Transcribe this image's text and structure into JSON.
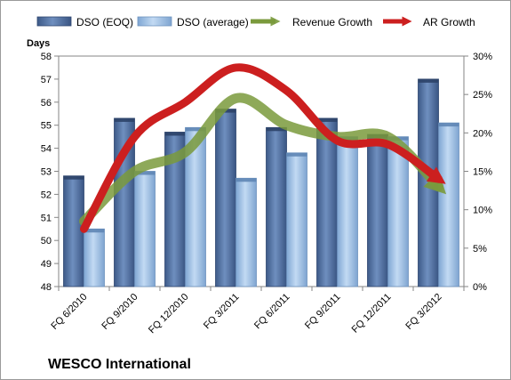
{
  "chart_data": {
    "type": "bar",
    "categories": [
      "FQ 6/2010",
      "FQ 9/2010",
      "FQ 12/2010",
      "FQ 3/2011",
      "FQ 6/2011",
      "FQ 9/2011",
      "FQ 12/2011",
      "FQ 3/2012"
    ],
    "series": [
      {
        "name": "DSO (EOQ)",
        "type": "bar",
        "axis": "left",
        "values": [
          52.8,
          55.3,
          54.7,
          55.7,
          54.9,
          55.3,
          54.6,
          57.0
        ],
        "color": "#4f6fa0"
      },
      {
        "name": "DSO (average)",
        "type": "bar",
        "axis": "left",
        "values": [
          50.5,
          53.0,
          54.9,
          52.7,
          53.8,
          54.5,
          54.5,
          55.1
        ],
        "color": "#9ec1e6"
      },
      {
        "name": "Revenue Growth",
        "type": "line",
        "axis": "right",
        "values": [
          8.5,
          15,
          17.5,
          24.5,
          21,
          19.5,
          19.5,
          13
        ],
        "color": "#7a9a3c"
      },
      {
        "name": "AR Growth",
        "type": "line",
        "axis": "right",
        "values": [
          7.5,
          19.5,
          24,
          28.5,
          25.5,
          19,
          18.5,
          14
        ],
        "color": "#cc1f1f"
      }
    ],
    "ylabel": "Days",
    "ylim": [
      48,
      58
    ],
    "yticks": [
      "48",
      "49",
      "50",
      "51",
      "52",
      "53",
      "54",
      "55",
      "56",
      "57",
      "58"
    ],
    "y2lim": [
      0,
      30
    ],
    "y2ticks": [
      "0%",
      "5%",
      "10%",
      "15%",
      "20%",
      "25%",
      "30%"
    ],
    "grid": false,
    "legend": "top"
  },
  "company_label": "WESCO International"
}
